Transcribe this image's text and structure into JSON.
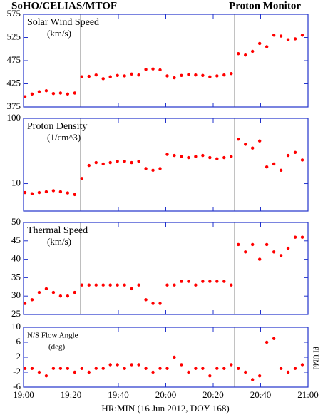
{
  "header": {
    "left": "SoHO/CELIAS/MTOF",
    "right": "Proton Monitor"
  },
  "x_label": "HR:MIN (16 Jun 2012, DOY 168)",
  "credit": "FI UMd",
  "chart_data": [
    {
      "type": "scatter",
      "title": "Solar Wind Speed",
      "unit": "(km/s)",
      "color": "#ff0000",
      "x": [
        19.01,
        19.06,
        19.11,
        19.16,
        19.21,
        19.26,
        19.31,
        19.36,
        19.41,
        19.46,
        19.51,
        19.56,
        19.61,
        19.66,
        19.71,
        19.76,
        19.81,
        19.86,
        19.91,
        19.96,
        20.01,
        20.06,
        20.11,
        20.16,
        20.21,
        20.26,
        20.31,
        20.36,
        20.41,
        20.46,
        20.51,
        20.56,
        20.61,
        20.66,
        20.71,
        20.76,
        20.81,
        20.86,
        20.91,
        20.96
      ],
      "values": [
        397,
        403,
        408,
        410,
        404,
        405,
        403,
        405,
        440,
        441,
        444,
        436,
        440,
        443,
        442,
        446,
        444,
        456,
        457,
        455,
        442,
        438,
        443,
        445,
        444,
        443,
        440,
        442,
        444,
        447,
        490,
        487,
        495,
        512,
        505,
        530,
        528,
        520,
        522,
        530
      ],
      "xlim": [
        19,
        21
      ],
      "ylim": [
        375,
        575
      ],
      "yticks": [
        375,
        425,
        475,
        525,
        575
      ],
      "vlines": [
        19.4,
        20.483
      ]
    },
    {
      "type": "scatter",
      "title": "Proton Density",
      "unit": "(1/cm^3)",
      "color": "#ff0000",
      "log": true,
      "x": [
        19.01,
        19.06,
        19.11,
        19.16,
        19.21,
        19.26,
        19.31,
        19.36,
        19.41,
        19.46,
        19.51,
        19.56,
        19.61,
        19.66,
        19.71,
        19.76,
        19.81,
        19.86,
        19.91,
        19.96,
        20.01,
        20.06,
        20.11,
        20.16,
        20.21,
        20.26,
        20.31,
        20.36,
        20.41,
        20.46,
        20.51,
        20.56,
        20.61,
        20.66,
        20.71,
        20.76,
        20.81,
        20.86,
        20.91,
        20.96
      ],
      "values": [
        7.3,
        7.0,
        7.3,
        7.5,
        7.8,
        7.5,
        7.2,
        6.8,
        12,
        19,
        21,
        20,
        21,
        22,
        22,
        21,
        22,
        17,
        16,
        17,
        28,
        27,
        26,
        25,
        26,
        27,
        25,
        24,
        25,
        26,
        48,
        40,
        35,
        45,
        18,
        20,
        16,
        27,
        30,
        23
      ],
      "xlim": [
        19,
        21
      ],
      "ylim": [
        3.8,
        100
      ],
      "yticks": [
        10,
        100
      ],
      "vlines": [
        19.4,
        20.483
      ]
    },
    {
      "type": "scatter",
      "title": "Thermal Speed",
      "unit": "(km/s)",
      "color": "#ff0000",
      "x": [
        19.01,
        19.06,
        19.11,
        19.16,
        19.21,
        19.26,
        19.31,
        19.36,
        19.41,
        19.46,
        19.51,
        19.56,
        19.61,
        19.66,
        19.71,
        19.76,
        19.81,
        19.86,
        19.91,
        19.96,
        20.01,
        20.06,
        20.11,
        20.16,
        20.21,
        20.26,
        20.31,
        20.36,
        20.41,
        20.46,
        20.51,
        20.56,
        20.61,
        20.66,
        20.71,
        20.76,
        20.81,
        20.86,
        20.91,
        20.96
      ],
      "values": [
        28,
        29,
        31,
        32,
        31,
        30,
        30,
        31,
        33,
        33,
        33,
        33,
        33,
        33,
        33,
        32,
        33,
        29,
        28,
        28,
        33,
        33,
        34,
        34,
        33,
        34,
        34,
        34,
        34,
        33,
        44,
        42,
        44,
        40,
        44,
        42,
        41,
        43,
        46,
        46
      ],
      "xlim": [
        19,
        21
      ],
      "ylim": [
        25,
        50
      ],
      "yticks": [
        25,
        30,
        35,
        40,
        45,
        50
      ],
      "vlines": [
        19.4,
        20.483
      ]
    },
    {
      "type": "scatter",
      "title": "N/S Flow Angle",
      "unit": "(deg)",
      "color": "#ff0000",
      "x": [
        19.01,
        19.06,
        19.11,
        19.16,
        19.21,
        19.26,
        19.31,
        19.36,
        19.41,
        19.46,
        19.51,
        19.56,
        19.61,
        19.66,
        19.71,
        19.76,
        19.81,
        19.86,
        19.91,
        19.96,
        20.01,
        20.06,
        20.11,
        20.16,
        20.21,
        20.26,
        20.31,
        20.36,
        20.41,
        20.46,
        20.51,
        20.56,
        20.61,
        20.66,
        20.71,
        20.76,
        20.81,
        20.86,
        20.91,
        20.96
      ],
      "values": [
        -1,
        -1,
        -2,
        -3,
        -1,
        -1,
        -1,
        -2,
        -1,
        -2,
        -1,
        -1,
        0,
        0,
        -1,
        0,
        0,
        -1,
        -2,
        -1,
        -1,
        2,
        0,
        -2,
        -1,
        -1,
        -3,
        -1,
        -1,
        0,
        -1,
        -2,
        -4,
        -3,
        6,
        7,
        -1,
        -2,
        -1,
        0
      ],
      "xlim": [
        19,
        21
      ],
      "ylim": [
        -6,
        10
      ],
      "yticks": [
        -6,
        -2,
        2,
        6,
        10
      ],
      "vlines": [
        20.483
      ],
      "xticks": [
        {
          "value": 19,
          "label": "19:00"
        },
        {
          "value": 19.3333,
          "label": "19:20"
        },
        {
          "value": 19.6667,
          "label": "19:40"
        },
        {
          "value": 20,
          "label": "20:00"
        },
        {
          "value": 20.3333,
          "label": "20:20"
        },
        {
          "value": 20.6667,
          "label": "20:40"
        },
        {
          "value": 21,
          "label": "21:00"
        }
      ]
    }
  ]
}
